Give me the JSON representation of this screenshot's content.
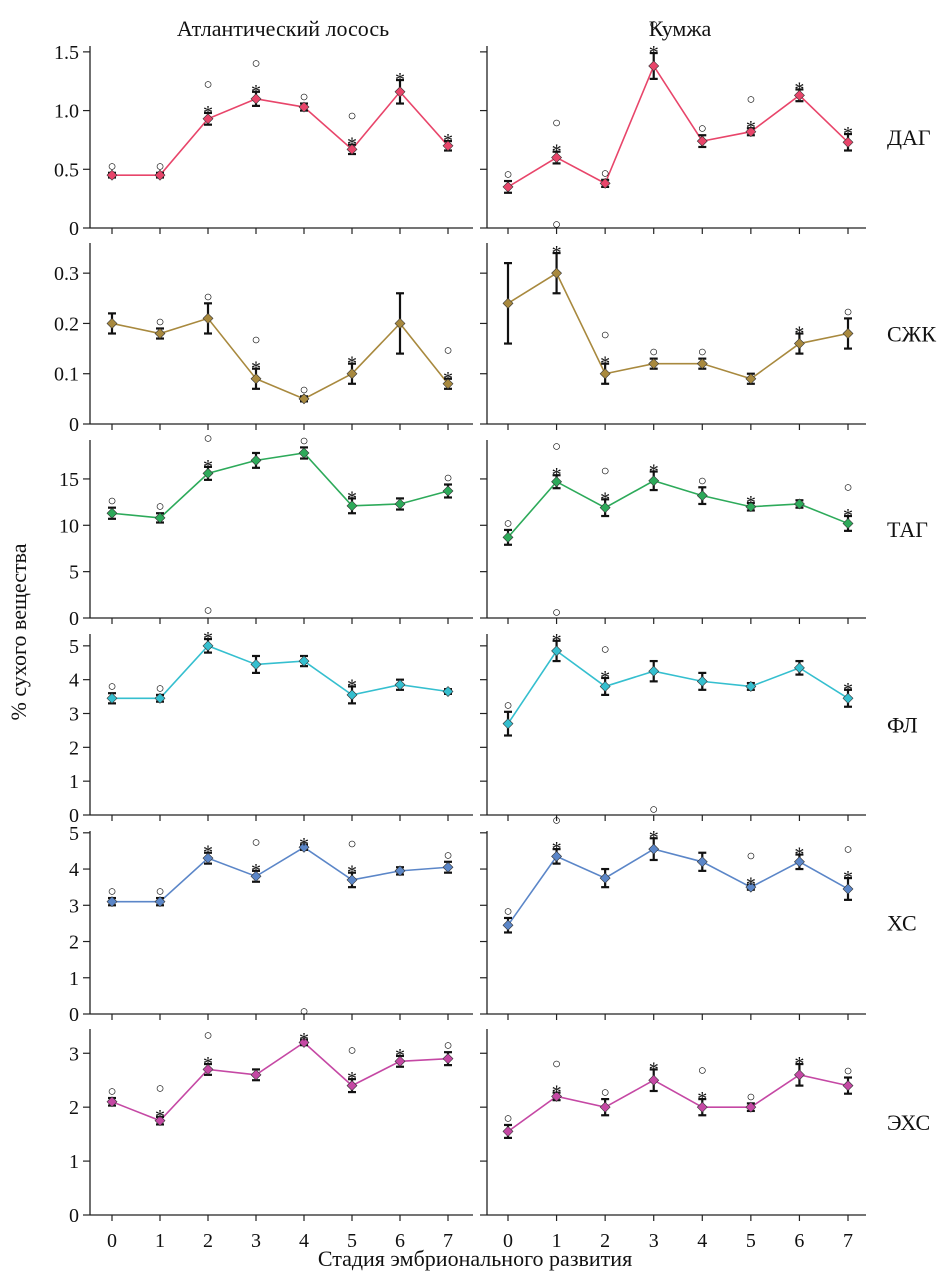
{
  "labels": {
    "columns": [
      "Атлантический лосось",
      "Кумжа"
    ],
    "y_axis": "% сухого вещества",
    "x_axis": "Стадия эмбрионального развития",
    "asterisk": "*",
    "circle": "○"
  },
  "chart_data": {
    "type": "line",
    "x": [
      0,
      1,
      2,
      3,
      4,
      5,
      6,
      7
    ],
    "xlabel": "Стадия эмбрионального развития",
    "ylabel": "% сухого вещества",
    "columns": [
      "Атлантический лосось",
      "Кумжа"
    ],
    "panels": [
      {
        "row": "ДАГ",
        "color": "#e8456a",
        "ylim": [
          0,
          1.55
        ],
        "yticks": [
          0,
          0.5,
          1.0,
          1.5
        ],
        "ytick_labels": [
          "0",
          "0.5",
          "1.0",
          "1.5"
        ],
        "series": [
          {
            "column": "Атлантический лосось",
            "values": [
              0.45,
              0.45,
              0.93,
              1.1,
              1.03,
              0.67,
              1.16,
              0.7
            ],
            "errors": [
              0.02,
              0.02,
              0.05,
              0.06,
              0.03,
              0.04,
              0.1,
              0.04
            ],
            "asterisk": [
              false,
              false,
              true,
              true,
              false,
              true,
              true,
              true
            ],
            "circle": [
              true,
              true,
              true,
              true,
              true,
              true,
              false,
              false
            ]
          },
          {
            "column": "Кумжа",
            "values": [
              0.35,
              0.6,
              0.38,
              1.38,
              0.74,
              0.82,
              1.13,
              0.73
            ],
            "errors": [
              0.05,
              0.05,
              0.03,
              0.11,
              0.05,
              0.03,
              0.05,
              0.07
            ],
            "asterisk": [
              false,
              true,
              false,
              true,
              false,
              true,
              true,
              true
            ],
            "circle": [
              true,
              true,
              true,
              true,
              true,
              true,
              false,
              false
            ]
          }
        ]
      },
      {
        "row": "СЖК",
        "color": "#a8893e",
        "ylim": [
          0,
          0.36
        ],
        "yticks": [
          0,
          0.1,
          0.2,
          0.3
        ],
        "ytick_labels": [
          "0",
          "0.1",
          "0.2",
          "0.3"
        ],
        "series": [
          {
            "column": "Атлантический лосось",
            "values": [
              0.2,
              0.18,
              0.21,
              0.09,
              0.05,
              0.1,
              0.2,
              0.08
            ],
            "errors": [
              0.02,
              0.01,
              0.03,
              0.02,
              0.005,
              0.02,
              0.06,
              0.01
            ],
            "asterisk": [
              false,
              false,
              false,
              true,
              false,
              true,
              false,
              true
            ],
            "circle": [
              false,
              true,
              true,
              true,
              true,
              false,
              false,
              true
            ]
          },
          {
            "column": "Кумжа",
            "values": [
              0.24,
              0.3,
              0.1,
              0.12,
              0.12,
              0.09,
              0.16,
              0.18
            ],
            "errors": [
              0.08,
              0.04,
              0.02,
              0.01,
              0.01,
              0.01,
              0.02,
              0.03
            ],
            "asterisk": [
              false,
              true,
              true,
              false,
              false,
              false,
              true,
              false
            ],
            "circle": [
              false,
              true,
              true,
              true,
              true,
              false,
              false,
              true
            ]
          }
        ]
      },
      {
        "row": "ТАГ",
        "color": "#2daa5a",
        "ylim": [
          0,
          19.2
        ],
        "yticks": [
          0,
          5,
          10,
          15
        ],
        "ytick_labels": [
          "0",
          "5",
          "10",
          "15"
        ],
        "series": [
          {
            "column": "Атлантический лосось",
            "values": [
              11.3,
              10.8,
              15.6,
              17.0,
              17.8,
              12.1,
              12.3,
              13.7
            ],
            "errors": [
              0.6,
              0.5,
              0.7,
              0.8,
              0.6,
              0.8,
              0.6,
              0.7
            ],
            "asterisk": [
              false,
              false,
              true,
              false,
              false,
              true,
              false,
              false
            ],
            "circle": [
              true,
              true,
              true,
              false,
              true,
              false,
              false,
              true
            ]
          },
          {
            "column": "Кумжа",
            "values": [
              8.7,
              14.7,
              11.9,
              14.8,
              13.2,
              12.0,
              12.3,
              10.2
            ],
            "errors": [
              0.8,
              0.7,
              0.9,
              1.0,
              0.9,
              0.4,
              0.4,
              0.8
            ],
            "asterisk": [
              false,
              true,
              true,
              true,
              false,
              true,
              false,
              true
            ],
            "circle": [
              true,
              true,
              true,
              false,
              true,
              false,
              false,
              true
            ]
          }
        ]
      },
      {
        "row": "ФЛ",
        "color": "#35bfcf",
        "ylim": [
          0,
          5.35
        ],
        "yticks": [
          0,
          1,
          2,
          3,
          4,
          5
        ],
        "ytick_labels": [
          "0",
          "1",
          "2",
          "3",
          "4",
          "5"
        ],
        "series": [
          {
            "column": "Атлантический лосось",
            "values": [
              3.45,
              3.45,
              5.0,
              4.45,
              4.55,
              3.55,
              3.85,
              3.65
            ],
            "errors": [
              0.15,
              0.1,
              0.2,
              0.25,
              0.15,
              0.25,
              0.15,
              0.07
            ],
            "asterisk": [
              false,
              false,
              true,
              false,
              false,
              true,
              false,
              false
            ],
            "circle": [
              true,
              true,
              true,
              false,
              false,
              false,
              false,
              false
            ]
          },
          {
            "column": "Кумжа",
            "values": [
              2.7,
              4.85,
              3.8,
              4.25,
              3.95,
              3.8,
              4.35,
              3.45
            ],
            "errors": [
              0.35,
              0.3,
              0.25,
              0.3,
              0.25,
              0.1,
              0.2,
              0.25
            ],
            "asterisk": [
              false,
              true,
              true,
              false,
              false,
              false,
              false,
              true
            ],
            "circle": [
              true,
              true,
              true,
              false,
              false,
              false,
              false,
              false
            ]
          }
        ]
      },
      {
        "row": "ХС",
        "color": "#5b86c8",
        "ylim": [
          0,
          5.05
        ],
        "yticks": [
          0,
          1,
          2,
          3,
          4,
          5
        ],
        "ytick_labels": [
          "0",
          "1",
          "2",
          "3",
          "4",
          "5"
        ],
        "series": [
          {
            "column": "Атлантический лосось",
            "values": [
              3.1,
              3.1,
              4.3,
              3.8,
              4.6,
              3.7,
              3.95,
              4.05
            ],
            "errors": [
              0.1,
              0.1,
              0.15,
              0.15,
              0.07,
              0.2,
              0.1,
              0.15
            ],
            "asterisk": [
              false,
              false,
              true,
              true,
              true,
              true,
              false,
              false
            ],
            "circle": [
              true,
              true,
              false,
              true,
              false,
              true,
              false,
              true
            ]
          },
          {
            "column": "Кумжа",
            "values": [
              2.45,
              4.35,
              3.75,
              4.55,
              4.2,
              3.5,
              4.2,
              3.45
            ],
            "errors": [
              0.2,
              0.2,
              0.25,
              0.3,
              0.25,
              0.07,
              0.2,
              0.3
            ],
            "asterisk": [
              false,
              true,
              false,
              true,
              false,
              true,
              true,
              true
            ],
            "circle": [
              true,
              true,
              false,
              true,
              false,
              true,
              false,
              true
            ]
          }
        ]
      },
      {
        "row": "ЭХС",
        "color": "#c548a4",
        "ylim": [
          0,
          3.45
        ],
        "yticks": [
          0,
          1,
          2,
          3
        ],
        "ytick_labels": [
          "0",
          "1",
          "2",
          "3"
        ],
        "series": [
          {
            "column": "Атлантический лосось",
            "values": [
              2.1,
              1.75,
              2.7,
              2.6,
              3.2,
              2.4,
              2.85,
              2.9
            ],
            "errors": [
              0.07,
              0.07,
              0.1,
              0.1,
              0.05,
              0.12,
              0.1,
              0.12
            ],
            "asterisk": [
              false,
              true,
              true,
              false,
              true,
              true,
              true,
              false
            ],
            "circle": [
              true,
              true,
              true,
              false,
              true,
              true,
              false,
              true
            ]
          },
          {
            "column": "Кумжа",
            "values": [
              1.55,
              2.2,
              2.0,
              2.5,
              2.0,
              2.0,
              2.6,
              2.4
            ],
            "errors": [
              0.12,
              0.07,
              0.15,
              0.2,
              0.15,
              0.07,
              0.2,
              0.15
            ],
            "asterisk": [
              false,
              true,
              false,
              true,
              true,
              false,
              true,
              false
            ],
            "circle": [
              true,
              true,
              true,
              false,
              true,
              true,
              false,
              true
            ]
          }
        ]
      }
    ]
  }
}
